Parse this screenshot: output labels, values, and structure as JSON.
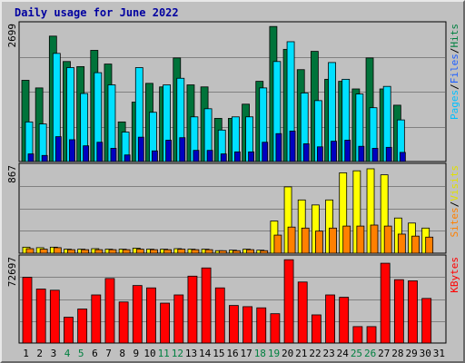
{
  "title": "Daily usage for June 2022",
  "colors": {
    "background": "#c0c0c0",
    "hits": "#008040",
    "files": "#00e0ff",
    "pages": "#00c0ff",
    "sites": "#ff8000",
    "visits": "#ffff00",
    "kbytes": "#ff0000",
    "weekend_day": "#008040",
    "weekday": "#000000"
  },
  "chart_data": [
    {
      "type": "bar",
      "panel": "hits-files-pages",
      "categories": [
        "1",
        "2",
        "3",
        "4",
        "5",
        "6",
        "7",
        "8",
        "9",
        "10",
        "11",
        "12",
        "13",
        "14",
        "15",
        "16",
        "17",
        "18",
        "19",
        "20",
        "21",
        "22",
        "23",
        "24",
        "25",
        "26",
        "27",
        "28",
        "29",
        "30",
        "31"
      ],
      "ylim": [
        0,
        2699
      ],
      "ytick_label": "2699",
      "legend": [
        "Pages",
        "/",
        "Files",
        "/",
        "Hits"
      ],
      "series": [
        {
          "name": "Hits",
          "values": [
            1600,
            1450,
            2470,
            1970,
            1870,
            2190,
            1920,
            780,
            1170,
            1540,
            1470,
            2040,
            1510,
            1470,
            850,
            850,
            1130,
            1580,
            2660,
            2210,
            1810,
            2170,
            1620,
            1580,
            1430,
            2040,
            1430,
            1110,
            0,
            0,
            0
          ]
        },
        {
          "name": "Files",
          "values": [
            780,
            740,
            2130,
            1850,
            1340,
            1750,
            1510,
            580,
            1850,
            970,
            1510,
            1640,
            880,
            1040,
            620,
            880,
            880,
            1450,
            1970,
            2360,
            1350,
            1200,
            1950,
            1620,
            1330,
            1060,
            1480,
            820,
            0,
            0,
            0
          ]
        },
        {
          "name": "Pages",
          "values": [
            150,
            120,
            490,
            430,
            310,
            380,
            260,
            130,
            480,
            210,
            420,
            470,
            220,
            220,
            150,
            190,
            190,
            380,
            550,
            600,
            350,
            290,
            400,
            420,
            300,
            260,
            280,
            180,
            0,
            0,
            0
          ]
        }
      ]
    },
    {
      "type": "bar",
      "panel": "sites-visits",
      "categories": [
        "1",
        "2",
        "3",
        "4",
        "5",
        "6",
        "7",
        "8",
        "9",
        "10",
        "11",
        "12",
        "13",
        "14",
        "15",
        "16",
        "17",
        "18",
        "19",
        "20",
        "21",
        "22",
        "23",
        "24",
        "25",
        "26",
        "27",
        "28",
        "29",
        "30",
        "31"
      ],
      "ylim": [
        0,
        867
      ],
      "ytick_label": "867",
      "legend": [
        "Sites",
        "/",
        "Visits"
      ],
      "series": [
        {
          "name": "Visits",
          "values": [
            60,
            55,
            60,
            40,
            40,
            45,
            40,
            40,
            50,
            40,
            40,
            45,
            40,
            40,
            25,
            30,
            40,
            30,
            320,
            660,
            530,
            480,
            530,
            800,
            820,
            840,
            780,
            350,
            300,
            250,
            0
          ]
        },
        {
          "name": "Sites",
          "values": [
            45,
            40,
            55,
            35,
            35,
            35,
            35,
            35,
            40,
            35,
            35,
            40,
            35,
            35,
            25,
            25,
            35,
            25,
            180,
            260,
            250,
            220,
            250,
            270,
            270,
            280,
            270,
            190,
            170,
            160,
            0
          ]
        }
      ]
    },
    {
      "type": "bar",
      "panel": "kbytes",
      "categories": [
        "1",
        "2",
        "3",
        "4",
        "5",
        "6",
        "7",
        "8",
        "9",
        "10",
        "11",
        "12",
        "13",
        "14",
        "15",
        "16",
        "17",
        "18",
        "19",
        "20",
        "21",
        "22",
        "23",
        "24",
        "25",
        "26",
        "27",
        "28",
        "29",
        "30",
        "31"
      ],
      "ylim": [
        0,
        72697
      ],
      "ytick_label": "72697",
      "legend": [
        "KBytes"
      ],
      "series": [
        {
          "name": "KBytes",
          "values": [
            56000,
            46000,
            45000,
            22000,
            29000,
            41000,
            55000,
            35000,
            49000,
            47000,
            34000,
            41000,
            57000,
            64000,
            47000,
            32000,
            31000,
            30000,
            25000,
            71000,
            52000,
            24000,
            41000,
            39000,
            14000,
            14000,
            68000,
            54000,
            53000,
            38000,
            0
          ]
        }
      ]
    }
  ],
  "x_days": [
    {
      "label": "1",
      "weekend": false
    },
    {
      "label": "2",
      "weekend": false
    },
    {
      "label": "3",
      "weekend": false
    },
    {
      "label": "4",
      "weekend": true
    },
    {
      "label": "5",
      "weekend": true
    },
    {
      "label": "6",
      "weekend": false
    },
    {
      "label": "7",
      "weekend": false
    },
    {
      "label": "8",
      "weekend": false
    },
    {
      "label": "9",
      "weekend": false
    },
    {
      "label": "10",
      "weekend": false
    },
    {
      "label": "11",
      "weekend": true
    },
    {
      "label": "12",
      "weekend": true
    },
    {
      "label": "13",
      "weekend": false
    },
    {
      "label": "14",
      "weekend": false
    },
    {
      "label": "15",
      "weekend": false
    },
    {
      "label": "16",
      "weekend": false
    },
    {
      "label": "17",
      "weekend": false
    },
    {
      "label": "18",
      "weekend": true
    },
    {
      "label": "19",
      "weekend": true
    },
    {
      "label": "20",
      "weekend": false
    },
    {
      "label": "21",
      "weekend": false
    },
    {
      "label": "22",
      "weekend": false
    },
    {
      "label": "23",
      "weekend": false
    },
    {
      "label": "24",
      "weekend": false
    },
    {
      "label": "25",
      "weekend": true
    },
    {
      "label": "26",
      "weekend": true
    },
    {
      "label": "27",
      "weekend": false
    },
    {
      "label": "28",
      "weekend": false
    },
    {
      "label": "29",
      "weekend": false
    },
    {
      "label": "30",
      "weekend": false
    },
    {
      "label": "31",
      "weekend": false
    }
  ]
}
